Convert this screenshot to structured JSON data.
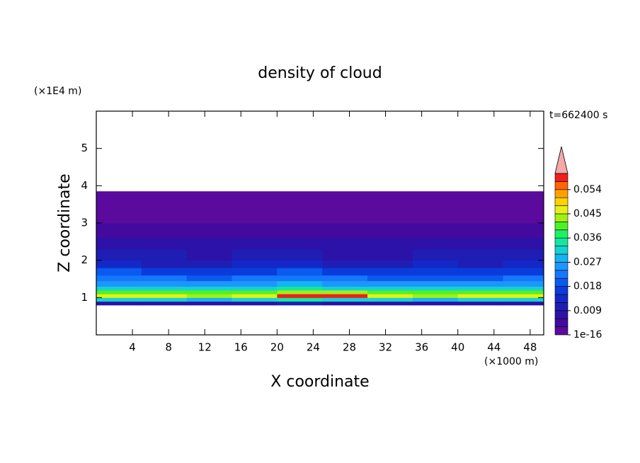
{
  "chart_data": {
    "type": "contour",
    "title": "density of cloud",
    "x_label": "X coordinate",
    "y_label": "Z coordinate",
    "x_unit": "(×1000 m)",
    "y_unit": "(×1E4 m)",
    "time_label": "t=662400 s",
    "xlim": [
      0,
      49.5
    ],
    "ylim": [
      0,
      6
    ],
    "xticks": [
      4,
      8,
      12,
      16,
      20,
      24,
      28,
      32,
      36,
      40,
      44,
      48
    ],
    "yticks": [
      1,
      2,
      3,
      4,
      5
    ],
    "levels": [
      1e-16,
      0.003,
      0.006,
      0.009,
      0.012,
      0.015,
      0.018,
      0.021,
      0.024,
      0.027,
      0.03,
      0.033,
      0.036,
      0.039,
      0.042,
      0.045,
      0.048,
      0.051,
      0.054,
      0.057,
      0.06
    ],
    "colors": [
      "#5a0a9c",
      "#440aa0",
      "#2c12a8",
      "#1e1eb4",
      "#1428c8",
      "#0a3cdc",
      "#0a5af0",
      "#1478ff",
      "#1e96ff",
      "#14b4f0",
      "#14d2d2",
      "#14e6a0",
      "#1ef064",
      "#50f028",
      "#a0f014",
      "#e6f014",
      "#ffd200",
      "#ffa000",
      "#ff6400",
      "#f01e1e"
    ],
    "extend_color": "#f4a8a8",
    "colorbar_lim": [
      1e-16,
      0.06
    ],
    "colorbar_ticks": [
      1e-16,
      0.009,
      0.018,
      0.027,
      0.036,
      0.045,
      0.054
    ],
    "x_edges": [
      0,
      5,
      10,
      15,
      20,
      25,
      30,
      35,
      40,
      45,
      50
    ],
    "z_edges": [
      0.8,
      0.9,
      1.0,
      1.1,
      1.2,
      1.3,
      1.45,
      1.6,
      1.8,
      2.0,
      2.3,
      2.6,
      3.0,
      3.85
    ],
    "density": [
      [
        0.008,
        0.008,
        0.007,
        0.008,
        0.009,
        0.008,
        0.008,
        0.007,
        0.008,
        0.008
      ],
      [
        0.03,
        0.031,
        0.029,
        0.03,
        0.033,
        0.032,
        0.03,
        0.029,
        0.03,
        0.031
      ],
      [
        0.045,
        0.046,
        0.044,
        0.047,
        0.058,
        0.058,
        0.046,
        0.044,
        0.045,
        0.046
      ],
      [
        0.04,
        0.041,
        0.039,
        0.041,
        0.044,
        0.043,
        0.04,
        0.039,
        0.04,
        0.041
      ],
      [
        0.032,
        0.031,
        0.03,
        0.032,
        0.033,
        0.032,
        0.031,
        0.03,
        0.031,
        0.032
      ],
      [
        0.026,
        0.025,
        0.024,
        0.026,
        0.027,
        0.026,
        0.025,
        0.024,
        0.025,
        0.026
      ],
      [
        0.022,
        0.021,
        0.02,
        0.022,
        0.022,
        0.021,
        0.02,
        0.019,
        0.018,
        0.021
      ],
      [
        0.018,
        0.017,
        0.016,
        0.017,
        0.018,
        0.017,
        0.016,
        0.016,
        0.015,
        0.017
      ],
      [
        0.012,
        0.011,
        0.011,
        0.012,
        0.012,
        0.011,
        0.011,
        0.012,
        0.011,
        0.012
      ],
      [
        0.009,
        0.009,
        0.008,
        0.009,
        0.009,
        0.008,
        0.008,
        0.009,
        0.009,
        0.009
      ],
      [
        0.007,
        0.006,
        0.007,
        0.006,
        0.007,
        0.006,
        0.006,
        0.007,
        0.006,
        0.007
      ],
      [
        0.005,
        0.004,
        0.005,
        0.004,
        0.004,
        0.005,
        0.004,
        0.004,
        0.005,
        0.004
      ],
      [
        0.002,
        0.002,
        0.002,
        0.002,
        0.002,
        0.002,
        0.002,
        0.002,
        0.002,
        0.002
      ]
    ]
  }
}
